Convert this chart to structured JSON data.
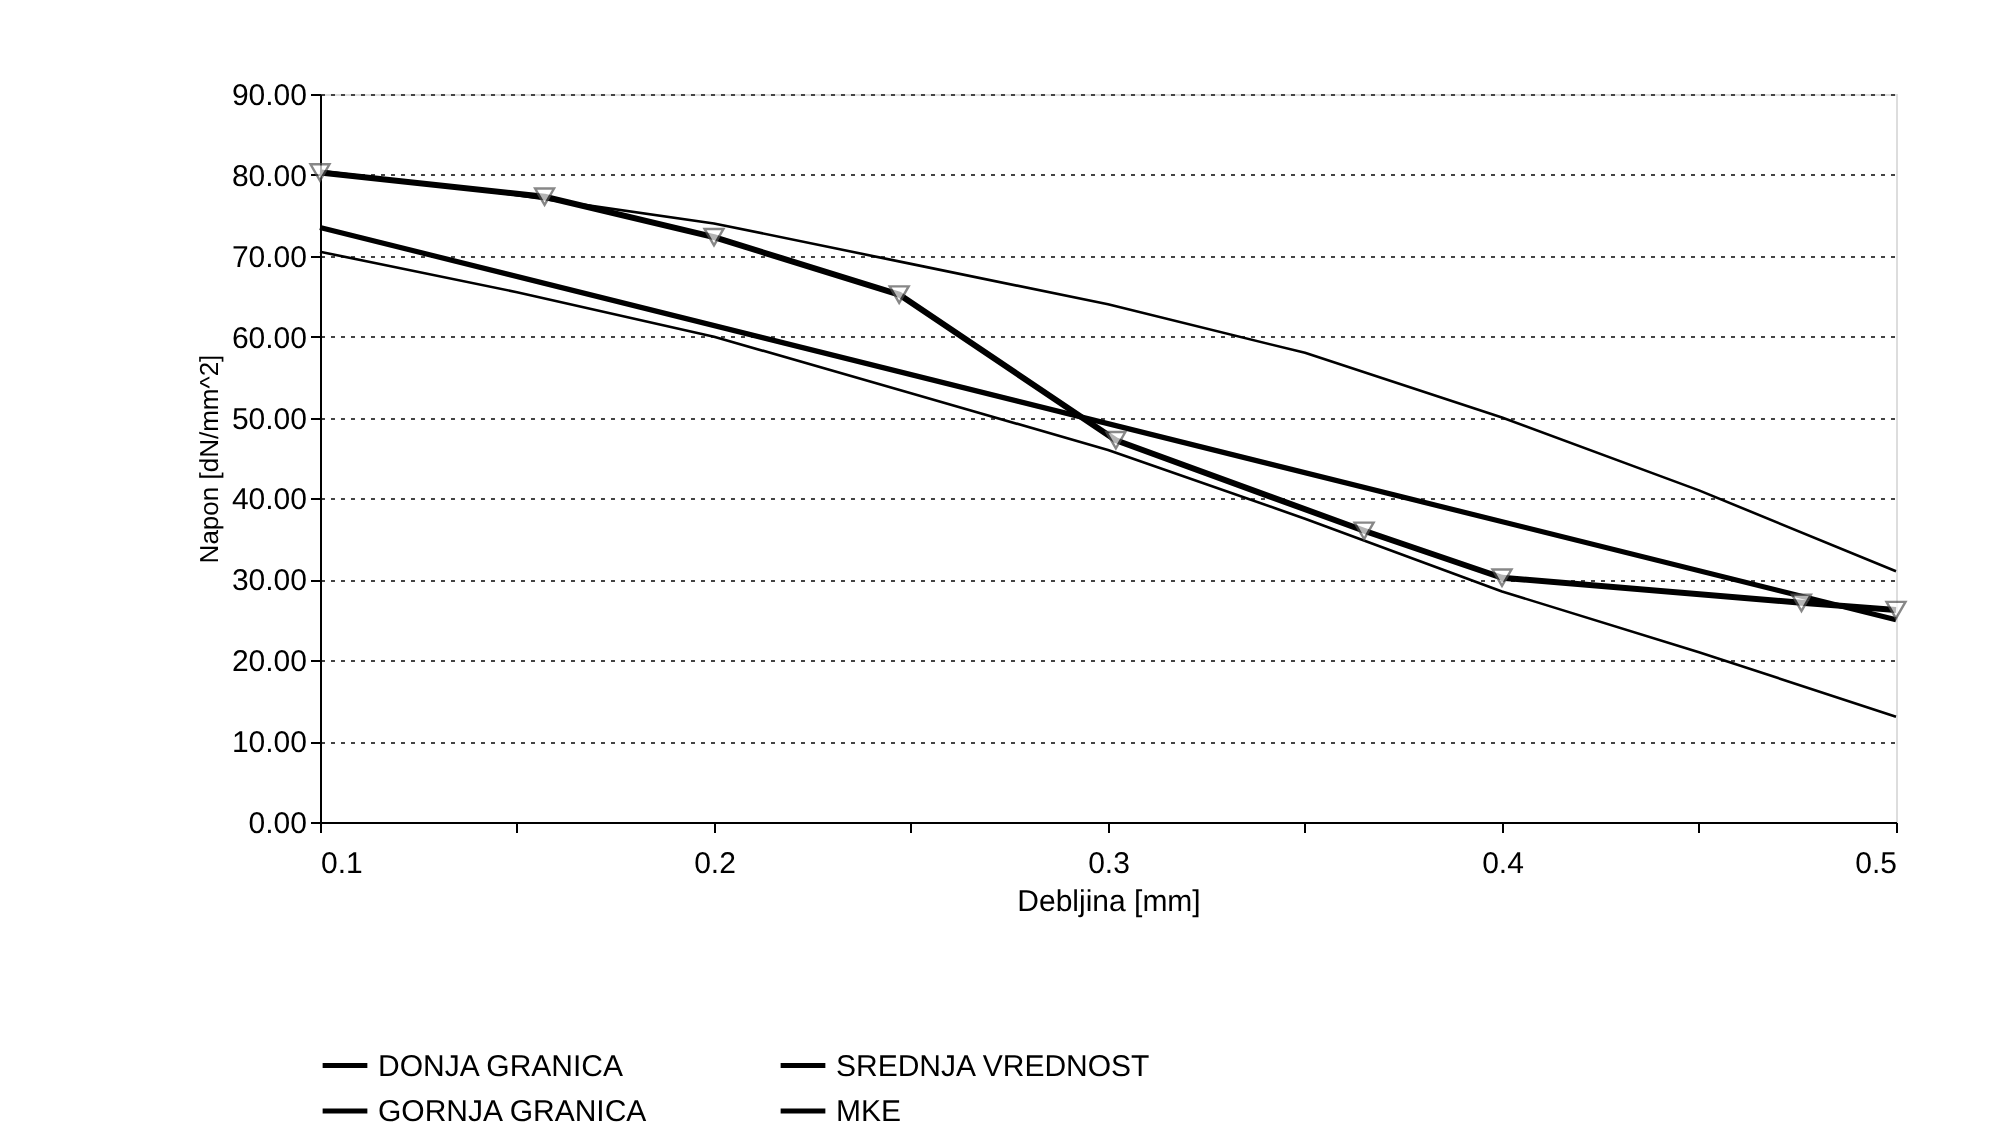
{
  "chart_data": {
    "type": "line",
    "xlabel": "Debljina [mm]",
    "ylabel": "Napon [dN/mm^2]",
    "xlim": [
      0.1,
      0.5
    ],
    "xticks": [
      0.1,
      {
        "value": 0.15,
        "label": null
      },
      0.2,
      {
        "value": 0.25,
        "label": null
      },
      0.3,
      {
        "value": 0.35,
        "label": null
      },
      0.4,
      {
        "value": 0.45,
        "label": null
      },
      0.5
    ],
    "ylim": [
      0,
      90
    ],
    "yticks": [
      {
        "value": 0,
        "label": "0.00"
      },
      {
        "value": 10,
        "label": "10.00"
      },
      {
        "value": 20,
        "label": "20.00"
      },
      {
        "value": 30,
        "label": "30.00"
      },
      {
        "value": 40,
        "label": "40.00"
      },
      {
        "value": 50,
        "label": "50.00"
      },
      {
        "value": 60,
        "label": "60.00"
      },
      {
        "value": 70,
        "label": "70.00"
      },
      {
        "value": 80,
        "label": "80.00"
      },
      {
        "value": 90,
        "label": "90.00"
      }
    ],
    "grid": "y",
    "legend": "bottom",
    "line_style": "solid",
    "series": [
      {
        "name": "DONJA GRANICA",
        "color": "#000000",
        "marker": "none",
        "x": [
          0.1,
          0.15,
          0.2,
          0.25,
          0.3,
          0.35,
          0.4,
          0.45,
          0.5
        ],
        "values": [
          70.5,
          65.5,
          60,
          53,
          46,
          37.5,
          28.5,
          21,
          13
        ]
      },
      {
        "name": "SREDNJA VREDNOST",
        "color": "#000000",
        "marker": "none",
        "x": [
          0.1,
          0.5
        ],
        "values": [
          73.5,
          25
        ]
      },
      {
        "name": "GORNJA GRANICA",
        "color": "#000000",
        "marker": "none",
        "x": [
          0.1,
          0.15,
          0.2,
          0.25,
          0.3,
          0.35,
          0.4,
          0.45,
          0.5
        ],
        "values": [
          80.5,
          77.5,
          74,
          69,
          64,
          58,
          50,
          41,
          31
        ]
      },
      {
        "name": "MKE",
        "color": "#000000",
        "marker": "triangle",
        "x": [
          0.1,
          0.157,
          0.2,
          0.247,
          0.302,
          0.365,
          0.4,
          0.476,
          0.5
        ],
        "values": [
          80.3,
          77.3,
          72.3,
          65.2,
          47.2,
          36,
          30.2,
          27.1,
          26.2
        ]
      }
    ]
  }
}
